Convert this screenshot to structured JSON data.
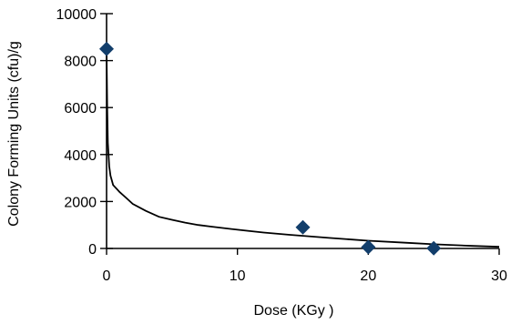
{
  "chart_data": {
    "type": "scatter",
    "xlabel": "Dose (KGy )",
    "ylabel": "Colony Forming Units (cfu)/g",
    "xlim": [
      0,
      30
    ],
    "ylim": [
      0,
      10000
    ],
    "x_ticks": [
      "0",
      "10",
      "20",
      "30"
    ],
    "y_ticks": [
      "0",
      "2000",
      "4000",
      "6000",
      "8000",
      "10000"
    ],
    "grid": false,
    "series": [
      {
        "kind": "points",
        "marker": "diamond",
        "color": "#123e6b",
        "points": [
          {
            "x": 0,
            "y": 8500
          },
          {
            "x": 15,
            "y": 900
          },
          {
            "x": 20,
            "y": 60
          },
          {
            "x": 25,
            "y": 10
          }
        ]
      },
      {
        "kind": "trend-line",
        "color": "#000000",
        "points": [
          {
            "x": 0,
            "y": 8300
          },
          {
            "x": 0.05,
            "y": 6000
          },
          {
            "x": 0.1,
            "y": 4500
          },
          {
            "x": 0.2,
            "y": 3500
          },
          {
            "x": 0.3,
            "y": 3100
          },
          {
            "x": 0.5,
            "y": 2700
          },
          {
            "x": 1,
            "y": 2400
          },
          {
            "x": 1.5,
            "y": 2150
          },
          {
            "x": 2,
            "y": 1900
          },
          {
            "x": 3,
            "y": 1600
          },
          {
            "x": 4,
            "y": 1350
          },
          {
            "x": 5,
            "y": 1220
          },
          {
            "x": 6,
            "y": 1100
          },
          {
            "x": 7,
            "y": 1000
          },
          {
            "x": 8,
            "y": 930
          },
          {
            "x": 10,
            "y": 800
          },
          {
            "x": 12,
            "y": 680
          },
          {
            "x": 14,
            "y": 580
          },
          {
            "x": 15,
            "y": 540
          },
          {
            "x": 17,
            "y": 450
          },
          {
            "x": 20,
            "y": 330
          },
          {
            "x": 23,
            "y": 240
          },
          {
            "x": 25,
            "y": 180
          },
          {
            "x": 28,
            "y": 110
          },
          {
            "x": 30,
            "y": 70
          }
        ]
      }
    ]
  }
}
